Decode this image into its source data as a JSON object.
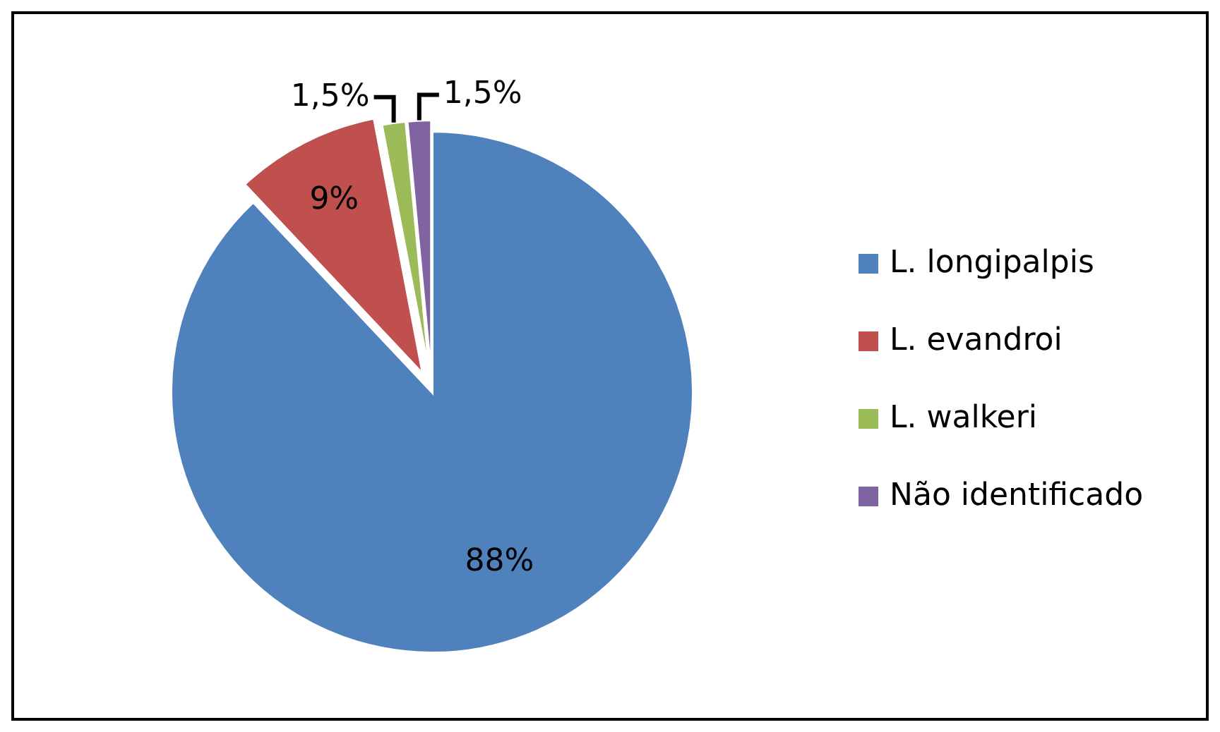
{
  "chart_data": {
    "type": "pie",
    "categories": [
      "L. longipalpis",
      "L. evandroi",
      "L. walkeri",
      "Não identificado"
    ],
    "values": [
      88,
      9,
      1.5,
      1.5
    ],
    "colors": [
      "#4f81bd",
      "#c0504d",
      "#9bbb59",
      "#8064a2"
    ],
    "value_labels": [
      "88%",
      "9%",
      "1,5%",
      "1,5%"
    ],
    "legend": "right"
  }
}
